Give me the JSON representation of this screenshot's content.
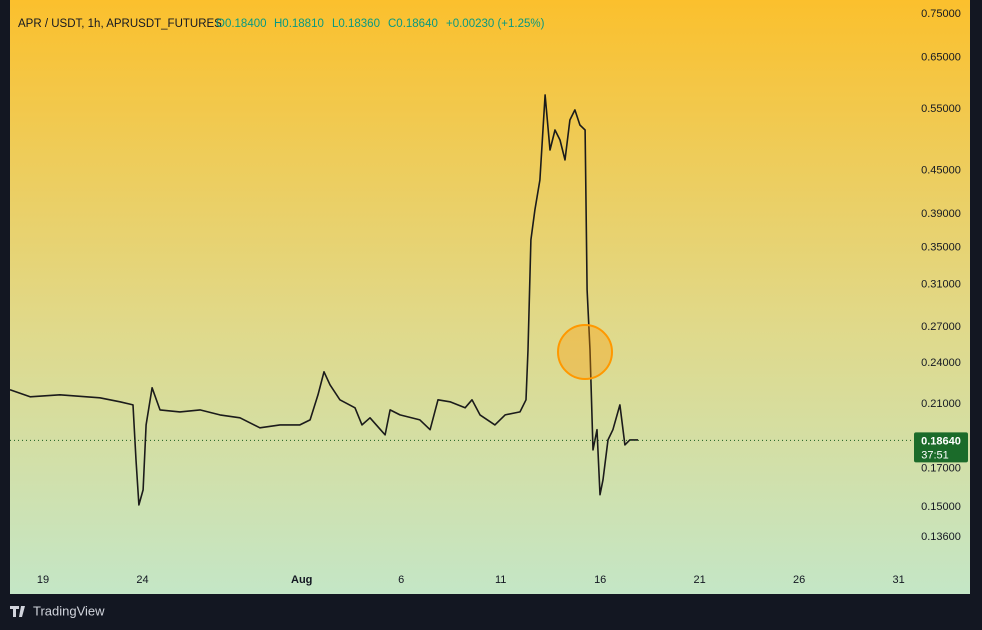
{
  "chart_data": {
    "type": "line",
    "title": "APR / USDT, 1h, APRUSDT_FUTURES",
    "ohlc": [
      "O0.18400",
      "H0.18810",
      "L0.18360",
      "C0.18640"
    ],
    "change": "+0.00230 (+1.25%)",
    "last_price": {
      "value": 0.1864,
      "label": "0.18640"
    },
    "countdown": "37:51",
    "brand": "TradingView",
    "color": "#1b1b1b",
    "log_scale": true,
    "grid": false,
    "x": [
      17.34,
      18.35,
      19.85,
      21.86,
      22.87,
      23.52,
      23.67,
      23.82,
      24.03,
      24.18,
      24.48,
      24.88,
      25.88,
      26.89,
      27.89,
      28.9,
      29.9,
      30.91,
      31.91,
      32.42,
      32.82,
      33.12,
      33.42,
      33.92,
      34.68,
      35.03,
      35.43,
      36.19,
      36.44,
      36.94,
      37.94,
      38.45,
      38.85,
      39.45,
      40.21,
      40.56,
      40.96,
      41.71,
      42.22,
      42.97,
      43.27,
      43.37,
      43.52,
      43.72,
      43.97,
      44.23,
      44.48,
      44.73,
      44.98,
      45.23,
      45.48,
      45.73,
      45.98,
      46.24,
      46.34,
      46.49,
      46.64,
      46.84,
      46.99,
      47.14,
      47.39,
      47.64,
      47.99,
      48.24,
      48.49,
      48.9
    ],
    "values": [
      0.2199,
      0.2149,
      0.2163,
      0.2142,
      0.2114,
      0.2093,
      0.1749,
      0.151,
      0.1586,
      0.1961,
      0.2213,
      0.2059,
      0.2046,
      0.2059,
      0.2026,
      0.2007,
      0.1942,
      0.1961,
      0.1961,
      0.1993,
      0.2163,
      0.2332,
      0.2235,
      0.2128,
      0.2073,
      0.1961,
      0.2007,
      0.1898,
      0.2059,
      0.2026,
      0.1993,
      0.193,
      0.2128,
      0.2114,
      0.2073,
      0.2128,
      0.2026,
      0.1961,
      0.2026,
      0.2046,
      0.2128,
      0.2505,
      0.3587,
      0.3956,
      0.4362,
      0.5758,
      0.4811,
      0.5136,
      0.4971,
      0.4657,
      0.5306,
      0.5483,
      0.522,
      0.5136,
      0.3047,
      0.2505,
      0.1807,
      0.193,
      0.1561,
      0.1639,
      0.1867,
      0.193,
      0.2093,
      0.1837,
      0.1867,
      0.1867
    ],
    "xlim": [
      17.34,
      62.67
    ],
    "xticks": [
      {
        "value": 19,
        "label": "19"
      },
      {
        "value": 24,
        "label": "24"
      },
      {
        "value": 32,
        "label": "Aug"
      },
      {
        "value": 37,
        "label": "6"
      },
      {
        "value": 42,
        "label": "11"
      },
      {
        "value": 47,
        "label": "16"
      },
      {
        "value": 52,
        "label": "21"
      },
      {
        "value": 57,
        "label": "26"
      },
      {
        "value": 62,
        "label": "31"
      }
    ],
    "ylim": [
      0.1241,
      0.7648
    ],
    "yticks": [
      {
        "value": 0.75,
        "label": "0.75000"
      },
      {
        "value": 0.65,
        "label": "0.65000"
      },
      {
        "value": 0.55,
        "label": "0.55000"
      },
      {
        "value": 0.45,
        "label": "0.45000"
      },
      {
        "value": 0.39,
        "label": "0.39000"
      },
      {
        "value": 0.35,
        "label": "0.35000"
      },
      {
        "value": 0.31,
        "label": "0.31000"
      },
      {
        "value": 0.27,
        "label": "0.27000"
      },
      {
        "value": 0.24,
        "label": "0.24000"
      },
      {
        "value": 0.21,
        "label": "0.21000"
      },
      {
        "value": 0.17,
        "label": "0.17000"
      },
      {
        "value": 0.15,
        "label": "0.15000"
      },
      {
        "value": 0.136,
        "label": "0.13600"
      }
    ]
  }
}
